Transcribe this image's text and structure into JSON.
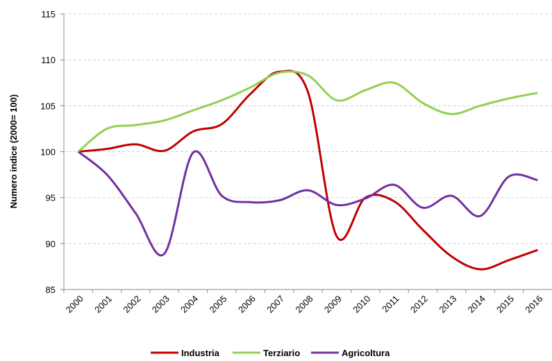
{
  "chart_data": {
    "type": "line",
    "y_label": "Numero indice (2000= 100)",
    "categories": [
      "2000",
      "2001",
      "2002",
      "2003",
      "2004",
      "2005",
      "2006",
      "2007",
      "2008",
      "2009",
      "2010",
      "2011",
      "2012",
      "2013",
      "2014",
      "2015",
      "2016"
    ],
    "series": [
      {
        "name": "Industria",
        "color": "#c00000",
        "values": [
          100,
          100.3,
          100.8,
          100.1,
          102.2,
          103.0,
          106.3,
          108.7,
          106.5,
          90.8,
          95.0,
          94.6,
          91.5,
          88.6,
          87.2,
          88.2,
          89.3
        ]
      },
      {
        "name": "Terziario",
        "color": "#92d050",
        "values": [
          100,
          102.5,
          102.9,
          103.4,
          104.5,
          105.6,
          107.0,
          108.6,
          108.3,
          105.6,
          106.7,
          107.5,
          105.3,
          104.1,
          105.0,
          105.8,
          106.4
        ]
      },
      {
        "name": "Agricoltura",
        "color": "#7030a0",
        "values": [
          100,
          97.5,
          93.3,
          88.9,
          99.9,
          95.2,
          94.5,
          94.7,
          95.8,
          94.2,
          94.9,
          96.4,
          93.9,
          95.2,
          93.0,
          97.3,
          96.9
        ]
      }
    ],
    "ylim": [
      85,
      115
    ],
    "yticks": [
      85,
      90,
      95,
      100,
      105,
      110,
      115
    ],
    "grid": true,
    "legend": "bottom"
  }
}
